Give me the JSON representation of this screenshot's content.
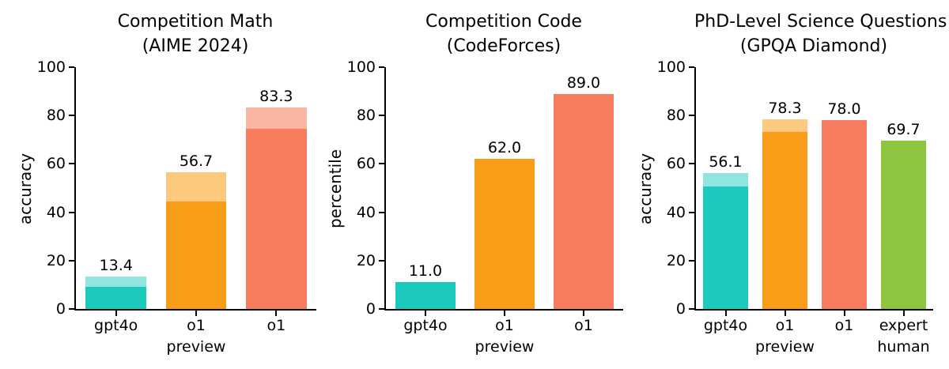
{
  "palette": {
    "teal": "#1BC9BD",
    "teal_light": "#92E5DE",
    "orange": "#F99C17",
    "orange_light": "#FCC97E",
    "coral": "#F87C5E",
    "coral_light": "#FAB5A3",
    "green": "#8CC63F",
    "axis": "#000000",
    "background": "#FFFFFF"
  },
  "chart_data": [
    {
      "type": "bar",
      "title": "Competition Math\n(AIME 2024)",
      "xlabel": "",
      "ylabel": "accuracy",
      "ylim": [
        0,
        100
      ],
      "yticks": [
        0,
        20,
        40,
        60,
        80,
        100
      ],
      "grid": false,
      "legend": false,
      "categories": [
        "gpt4o",
        "o1 preview",
        "o1"
      ],
      "bars": [
        {
          "category": "gpt4o",
          "label_lines": [
            "gpt4o"
          ],
          "total": 13.4,
          "total_label": "13.4",
          "solid": 9.3,
          "color": "teal",
          "color_light": "teal_light"
        },
        {
          "category": "o1 preview",
          "label_lines": [
            "o1",
            "preview"
          ],
          "total": 56.7,
          "total_label": "56.7",
          "solid": 44.6,
          "color": "orange",
          "color_light": "orange_light"
        },
        {
          "category": "o1",
          "label_lines": [
            "o1"
          ],
          "total": 83.3,
          "total_label": "83.3",
          "solid": 74.4,
          "color": "coral",
          "color_light": "coral_light"
        }
      ]
    },
    {
      "type": "bar",
      "title": "Competition Code\n(CodeForces)",
      "xlabel": "",
      "ylabel": "percentile",
      "ylim": [
        0,
        100
      ],
      "yticks": [
        0,
        20,
        40,
        60,
        80,
        100
      ],
      "grid": false,
      "legend": false,
      "categories": [
        "gpt4o",
        "o1 preview",
        "o1"
      ],
      "bars": [
        {
          "category": "gpt4o",
          "label_lines": [
            "gpt4o"
          ],
          "total": 11.0,
          "total_label": "11.0",
          "solid": 11.0,
          "color": "teal",
          "color_light": null
        },
        {
          "category": "o1 preview",
          "label_lines": [
            "o1",
            "preview"
          ],
          "total": 62.0,
          "total_label": "62.0",
          "solid": 62.0,
          "color": "orange",
          "color_light": null
        },
        {
          "category": "o1",
          "label_lines": [
            "o1"
          ],
          "total": 89.0,
          "total_label": "89.0",
          "solid": 89.0,
          "color": "coral",
          "color_light": null
        }
      ]
    },
    {
      "type": "bar",
      "title": "PhD-Level Science Questions\n(GPQA Diamond)",
      "xlabel": "",
      "ylabel": "accuracy",
      "ylim": [
        0,
        100
      ],
      "yticks": [
        0,
        20,
        40,
        60,
        80,
        100
      ],
      "grid": false,
      "legend": false,
      "categories": [
        "gpt4o",
        "o1 preview",
        "o1",
        "expert human"
      ],
      "bars": [
        {
          "category": "gpt4o",
          "label_lines": [
            "gpt4o"
          ],
          "total": 56.1,
          "total_label": "56.1",
          "solid": 50.6,
          "color": "teal",
          "color_light": "teal_light"
        },
        {
          "category": "o1 preview",
          "label_lines": [
            "o1",
            "preview"
          ],
          "total": 78.3,
          "total_label": "78.3",
          "solid": 73.3,
          "color": "orange",
          "color_light": "orange_light"
        },
        {
          "category": "o1",
          "label_lines": [
            "o1"
          ],
          "total": 78.0,
          "total_label": "78.0",
          "solid": 78.0,
          "color": "coral",
          "color_light": null
        },
        {
          "category": "expert human",
          "label_lines": [
            "expert",
            "human"
          ],
          "total": 69.7,
          "total_label": "69.7",
          "solid": 69.7,
          "color": "green",
          "color_light": null
        }
      ]
    }
  ]
}
